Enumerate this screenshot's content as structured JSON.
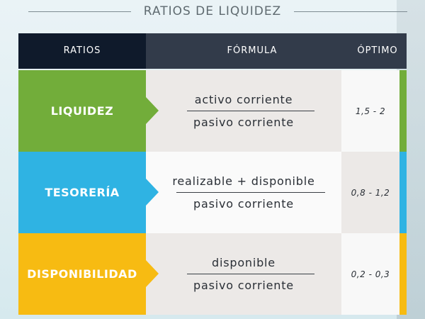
{
  "title": "RATIOS DE LIQUIDEZ",
  "header": {
    "ratios": "RATIOS",
    "formula": "FÓRMULA",
    "optimo": "ÓPTIMO"
  },
  "rows": [
    {
      "label": "LIQUIDEZ",
      "numerator": "activo corriente",
      "denominator": "pasivo corriente",
      "optimo": "1,5 - 2",
      "color": "#72ad3a",
      "formula_bg": "#ece9e7",
      "optimo_bg": "#f8f8f8"
    },
    {
      "label": "TESORERÍA",
      "numerator": "realizable + disponible",
      "denominator": "pasivo corriente",
      "optimo": "0,8 - 1,2",
      "color": "#2fb3e3",
      "formula_bg": "#fafafa",
      "optimo_bg": "#ece9e7"
    },
    {
      "label": "DISPONIBILIDAD",
      "numerator": "disponible",
      "denominator": "pasivo corriente",
      "optimo": "0,2 - 0,3",
      "color": "#f7bb12",
      "formula_bg": "#ece9e7",
      "optimo_bg": "#f8f8f8"
    }
  ]
}
